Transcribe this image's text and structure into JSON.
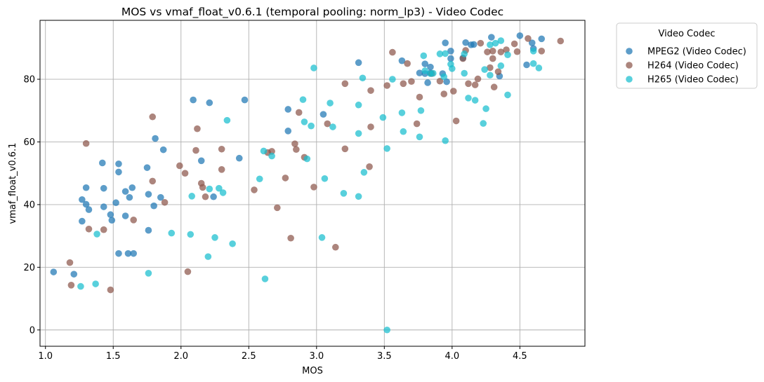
{
  "chart_data": {
    "type": "scatter",
    "title": "MOS vs vmaf_float_v0.6.1 (temporal pooling: norm_lp3) - Video Codec",
    "xlabel": "MOS",
    "ylabel": "vmaf_float_v0.6.1",
    "xlim": [
      0.96,
      4.98
    ],
    "ylim": [
      -5.2,
      98.8
    ],
    "xticks": [
      1.0,
      1.5,
      2.0,
      2.5,
      3.0,
      3.5,
      4.0,
      4.5
    ],
    "xtick_labels": [
      "1.0",
      "1.5",
      "2.0",
      "2.5",
      "3.0",
      "3.5",
      "4.0",
      "4.5"
    ],
    "yticks": [
      0,
      20,
      40,
      60,
      80
    ],
    "ytick_labels": [
      "0",
      "20",
      "40",
      "60",
      "80"
    ],
    "grid": true,
    "legend": {
      "title": "Video Codec",
      "placement": "outside-upper-right"
    },
    "series": [
      {
        "name": "MPEG2 (Video Codec)",
        "color": "#1f77b4",
        "points": [
          [
            1.06,
            18.5
          ],
          [
            1.21,
            17.8
          ],
          [
            1.27,
            41.6
          ],
          [
            1.27,
            34.7
          ],
          [
            1.3,
            45.4
          ],
          [
            1.3,
            40.1
          ],
          [
            1.32,
            38.4
          ],
          [
            1.42,
            53.3
          ],
          [
            1.43,
            45.2
          ],
          [
            1.43,
            39.3
          ],
          [
            1.48,
            36.8
          ],
          [
            1.49,
            35.0
          ],
          [
            1.52,
            40.6
          ],
          [
            1.54,
            53.0
          ],
          [
            1.54,
            50.4
          ],
          [
            1.54,
            24.4
          ],
          [
            1.59,
            44.2
          ],
          [
            1.59,
            36.4
          ],
          [
            1.61,
            24.4
          ],
          [
            1.62,
            42.3
          ],
          [
            1.64,
            45.4
          ],
          [
            1.65,
            24.4
          ],
          [
            1.75,
            51.8
          ],
          [
            1.76,
            43.3
          ],
          [
            1.76,
            31.8
          ],
          [
            1.8,
            39.6
          ],
          [
            1.81,
            61.1
          ],
          [
            1.85,
            42.3
          ],
          [
            1.87,
            57.5
          ],
          [
            2.09,
            73.4
          ],
          [
            2.15,
            54.0
          ],
          [
            2.21,
            72.5
          ],
          [
            2.24,
            42.5
          ],
          [
            2.43,
            54.8
          ],
          [
            2.47,
            73.4
          ],
          [
            2.79,
            70.4
          ],
          [
            2.79,
            63.5
          ],
          [
            3.05,
            68.8
          ],
          [
            3.31,
            85.3
          ],
          [
            3.63,
            85.9
          ],
          [
            3.76,
            82.0
          ],
          [
            3.8,
            84.9
          ],
          [
            3.8,
            81.8
          ],
          [
            3.82,
            78.9
          ],
          [
            3.84,
            83.9
          ],
          [
            3.84,
            82.0
          ],
          [
            3.93,
            81.8
          ],
          [
            3.95,
            91.6
          ],
          [
            3.96,
            79.2
          ],
          [
            3.99,
            89.0
          ],
          [
            3.99,
            86.6
          ],
          [
            4.08,
            86.8
          ],
          [
            4.1,
            91.7
          ],
          [
            4.14,
            91.0
          ],
          [
            4.16,
            91.1
          ],
          [
            4.29,
            93.4
          ],
          [
            4.35,
            81.0
          ],
          [
            4.5,
            93.9
          ],
          [
            4.55,
            84.6
          ],
          [
            4.59,
            91.6
          ],
          [
            4.6,
            89.8
          ],
          [
            4.66,
            92.9
          ]
        ]
      },
      {
        "name": "H264 (Video Codec)",
        "color": "#8c564b",
        "points": [
          [
            1.18,
            21.5
          ],
          [
            1.19,
            14.3
          ],
          [
            1.3,
            59.5
          ],
          [
            1.32,
            32.2
          ],
          [
            1.43,
            32.0
          ],
          [
            1.48,
            12.8
          ],
          [
            1.65,
            35.1
          ],
          [
            1.79,
            68.0
          ],
          [
            1.79,
            47.5
          ],
          [
            1.88,
            40.7
          ],
          [
            1.99,
            52.4
          ],
          [
            2.03,
            50.0
          ],
          [
            2.05,
            18.6
          ],
          [
            2.11,
            57.3
          ],
          [
            2.12,
            64.2
          ],
          [
            2.15,
            46.8
          ],
          [
            2.16,
            45.5
          ],
          [
            2.18,
            42.5
          ],
          [
            2.3,
            57.7
          ],
          [
            2.3,
            51.2
          ],
          [
            2.54,
            44.7
          ],
          [
            2.64,
            56.6
          ],
          [
            2.67,
            57.0
          ],
          [
            2.71,
            39.0
          ],
          [
            2.77,
            48.5
          ],
          [
            2.81,
            29.3
          ],
          [
            2.84,
            59.4
          ],
          [
            2.85,
            57.6
          ],
          [
            2.87,
            69.4
          ],
          [
            2.91,
            55.1
          ],
          [
            2.98,
            45.6
          ],
          [
            3.08,
            65.8
          ],
          [
            3.14,
            26.4
          ],
          [
            3.21,
            78.6
          ],
          [
            3.21,
            57.8
          ],
          [
            3.39,
            52.1
          ],
          [
            3.4,
            76.4
          ],
          [
            3.4,
            64.8
          ],
          [
            3.52,
            78.0
          ],
          [
            3.56,
            88.6
          ],
          [
            3.64,
            78.6
          ],
          [
            3.67,
            85.0
          ],
          [
            3.7,
            79.3
          ],
          [
            3.74,
            65.8
          ],
          [
            3.76,
            74.3
          ],
          [
            3.85,
            81.8
          ],
          [
            3.91,
            79.4
          ],
          [
            3.94,
            75.3
          ],
          [
            4.01,
            76.2
          ],
          [
            4.03,
            66.7
          ],
          [
            4.08,
            86.6
          ],
          [
            4.1,
            89.2
          ],
          [
            4.12,
            78.6
          ],
          [
            4.17,
            78.2
          ],
          [
            4.19,
            80.1
          ],
          [
            4.21,
            91.5
          ],
          [
            4.26,
            88.7
          ],
          [
            4.28,
            83.7
          ],
          [
            4.3,
            89.0
          ],
          [
            4.3,
            86.6
          ],
          [
            4.31,
            77.5
          ],
          [
            4.34,
            82.4
          ],
          [
            4.36,
            88.7
          ],
          [
            4.4,
            89.4
          ],
          [
            4.46,
            91.3
          ],
          [
            4.48,
            88.8
          ],
          [
            4.56,
            93.0
          ],
          [
            4.66,
            89.0
          ],
          [
            4.8,
            92.2
          ]
        ]
      },
      {
        "name": "H265 (Video Codec)",
        "color": "#17becf",
        "points": [
          [
            1.26,
            13.9
          ],
          [
            1.37,
            14.7
          ],
          [
            1.38,
            30.6
          ],
          [
            1.76,
            18.1
          ],
          [
            1.93,
            30.9
          ],
          [
            2.07,
            30.5
          ],
          [
            2.08,
            42.7
          ],
          [
            2.2,
            23.4
          ],
          [
            2.21,
            45.0
          ],
          [
            2.25,
            29.5
          ],
          [
            2.28,
            45.2
          ],
          [
            2.31,
            43.8
          ],
          [
            2.34,
            66.9
          ],
          [
            2.38,
            27.5
          ],
          [
            2.58,
            48.2
          ],
          [
            2.61,
            57.1
          ],
          [
            2.62,
            16.3
          ],
          [
            2.67,
            55.5
          ],
          [
            2.9,
            73.5
          ],
          [
            2.91,
            66.4
          ],
          [
            2.93,
            54.6
          ],
          [
            2.96,
            65.1
          ],
          [
            2.98,
            83.6
          ],
          [
            3.04,
            29.5
          ],
          [
            3.06,
            48.3
          ],
          [
            3.1,
            72.4
          ],
          [
            3.12,
            64.8
          ],
          [
            3.2,
            43.6
          ],
          [
            3.31,
            42.6
          ],
          [
            3.31,
            62.7
          ],
          [
            3.31,
            71.8
          ],
          [
            3.34,
            80.4
          ],
          [
            3.35,
            50.3
          ],
          [
            3.49,
            67.8
          ],
          [
            3.52,
            57.9
          ],
          [
            3.52,
            0.0
          ],
          [
            3.56,
            80.0
          ],
          [
            3.63,
            69.3
          ],
          [
            3.64,
            63.3
          ],
          [
            3.76,
            61.6
          ],
          [
            3.77,
            70.0
          ],
          [
            3.79,
            87.5
          ],
          [
            3.8,
            82.7
          ],
          [
            3.84,
            81.8
          ],
          [
            3.86,
            81.9
          ],
          [
            3.91,
            88.1
          ],
          [
            3.94,
            80.8
          ],
          [
            3.95,
            88.2
          ],
          [
            3.95,
            60.4
          ],
          [
            3.99,
            84.8
          ],
          [
            4.0,
            83.4
          ],
          [
            4.09,
            81.9
          ],
          [
            4.09,
            88.1
          ],
          [
            4.12,
            74.0
          ],
          [
            4.17,
            73.3
          ],
          [
            4.23,
            65.9
          ],
          [
            4.24,
            83.1
          ],
          [
            4.25,
            70.6
          ],
          [
            4.28,
            81.3
          ],
          [
            4.28,
            91.0
          ],
          [
            4.32,
            91.5
          ],
          [
            4.36,
            92.3
          ],
          [
            4.36,
            84.3
          ],
          [
            4.41,
            87.8
          ],
          [
            4.41,
            75.0
          ],
          [
            4.6,
            85.0
          ],
          [
            4.6,
            89.0
          ],
          [
            4.64,
            83.6
          ]
        ]
      }
    ]
  }
}
